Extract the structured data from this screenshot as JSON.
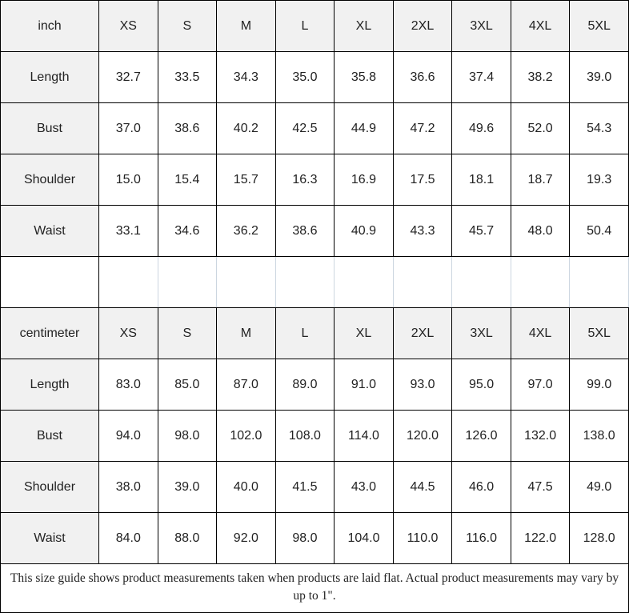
{
  "chart_data": [
    {
      "type": "table",
      "unit": "inch",
      "columns": [
        "inch",
        "XS",
        "S",
        "M",
        "L",
        "XL",
        "2XL",
        "3XL",
        "4XL",
        "5XL"
      ],
      "rows": [
        {
          "label": "Length",
          "values": [
            "32.7",
            "33.5",
            "34.3",
            "35.0",
            "35.8",
            "36.6",
            "37.4",
            "38.2",
            "39.0"
          ]
        },
        {
          "label": "Bust",
          "values": [
            "37.0",
            "38.6",
            "40.2",
            "42.5",
            "44.9",
            "47.2",
            "49.6",
            "52.0",
            "54.3"
          ]
        },
        {
          "label": "Shoulder",
          "values": [
            "15.0",
            "15.4",
            "15.7",
            "16.3",
            "16.9",
            "17.5",
            "18.1",
            "18.7",
            "19.3"
          ]
        },
        {
          "label": "Waist",
          "values": [
            "33.1",
            "34.6",
            "36.2",
            "38.6",
            "40.9",
            "43.3",
            "45.7",
            "48.0",
            "50.4"
          ]
        }
      ]
    },
    {
      "type": "table",
      "unit": "centimeter",
      "columns": [
        "centimeter",
        "XS",
        "S",
        "M",
        "L",
        "XL",
        "2XL",
        "3XL",
        "4XL",
        "5XL"
      ],
      "rows": [
        {
          "label": "Length",
          "values": [
            "83.0",
            "85.0",
            "87.0",
            "89.0",
            "91.0",
            "93.0",
            "95.0",
            "97.0",
            "99.0"
          ]
        },
        {
          "label": "Bust",
          "values": [
            "94.0",
            "98.0",
            "102.0",
            "108.0",
            "114.0",
            "120.0",
            "126.0",
            "132.0",
            "138.0"
          ]
        },
        {
          "label": "Shoulder",
          "values": [
            "38.0",
            "39.0",
            "40.0",
            "41.5",
            "43.0",
            "44.5",
            "46.0",
            "47.5",
            "49.0"
          ]
        },
        {
          "label": "Waist",
          "values": [
            "84.0",
            "88.0",
            "92.0",
            "98.0",
            "104.0",
            "110.0",
            "116.0",
            "122.0",
            "128.0"
          ]
        }
      ]
    }
  ],
  "footer": {
    "note": "This size guide shows product measurements taken when products are laid flat. Actual product measurements may vary by up to 1\"."
  },
  "colors": {
    "header_bg": "#f1f1f1",
    "border": "#000000",
    "spacer_line": "#ccd6e0",
    "text": "#222222"
  }
}
